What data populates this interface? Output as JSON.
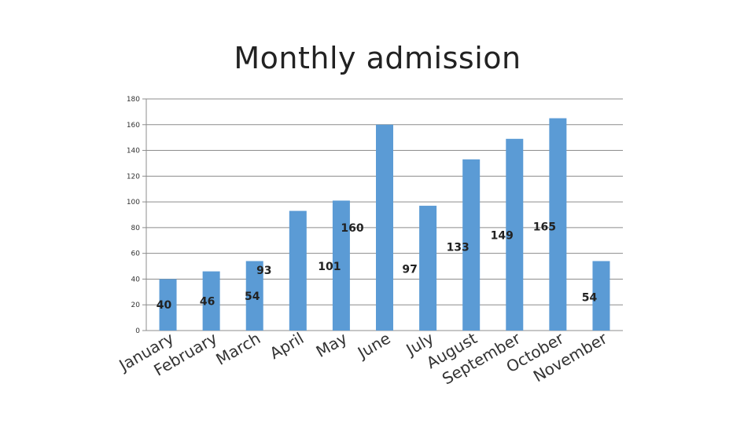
{
  "chart_data": {
    "type": "bar",
    "title": "Monthly admission",
    "categories": [
      "January",
      "February",
      "March",
      "April",
      "May",
      "June",
      "July",
      "August",
      "September",
      "October",
      "November"
    ],
    "bar_values": [
      40,
      46,
      54,
      93,
      101,
      160,
      97,
      133,
      149,
      165,
      54
    ],
    "data_labels": [
      "40",
      "46",
      "54",
      "93",
      "101",
      "160",
      "97",
      "133",
      "149",
      "165",
      "54"
    ],
    "ylim": [
      0,
      180
    ],
    "yticks": [
      0,
      20,
      40,
      60,
      80,
      100,
      120,
      140,
      160,
      180
    ],
    "grid": true,
    "bar_color": "#5b9bd5"
  }
}
